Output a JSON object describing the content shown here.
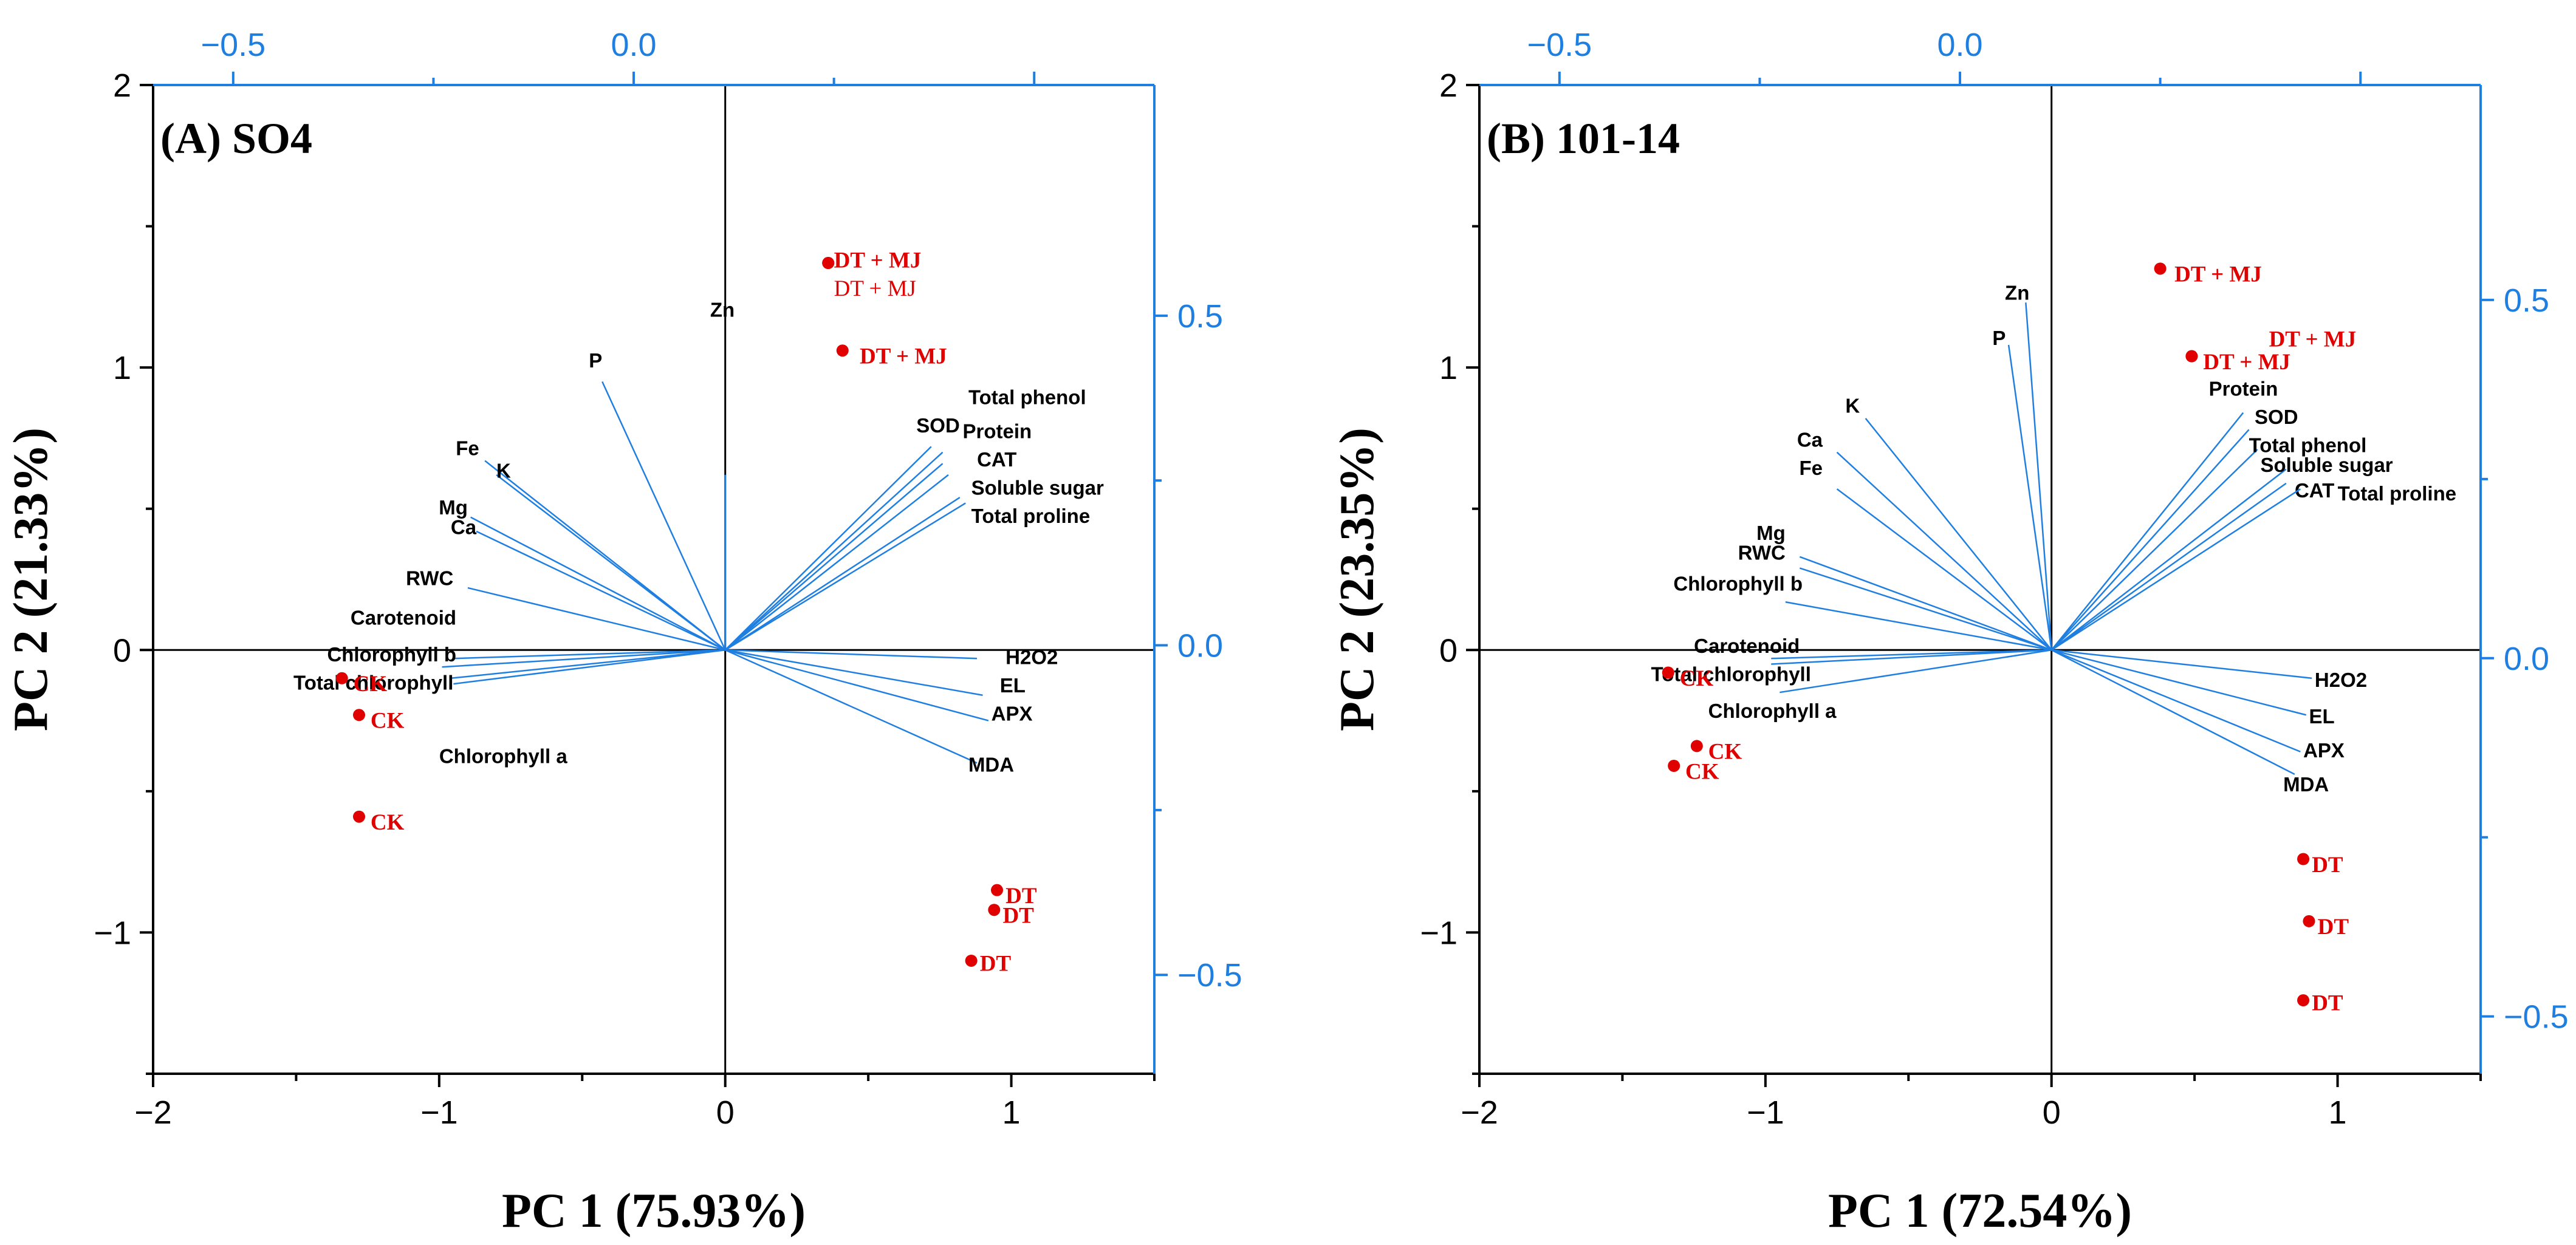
{
  "colors": {
    "vector": "#1f7fe0",
    "sample": "#e00000",
    "axis": "#000000",
    "loading_axis": "#1f7fe0"
  },
  "chart_data": [
    {
      "type": "scatter",
      "subtype": "pca-biplot",
      "title": "(A) SO4",
      "xlabel": "PC 1 (75.93%)",
      "ylabel": "PC 2 (21.33%)",
      "xlim": [
        -2,
        1.5
      ],
      "ylim": [
        -1.5,
        2
      ],
      "xticks": [
        -2,
        -1,
        0,
        1
      ],
      "xtick_labels": [
        "−2",
        "−1",
        "0",
        "1"
      ],
      "yticks": [
        2,
        1,
        0,
        -1
      ],
      "ytick_labels": [
        "2",
        "1",
        "0",
        "−1"
      ],
      "top_axis": {
        "lim": [
          -0.6,
          0.65
        ],
        "ticks": [
          -0.5,
          0.0
        ],
        "labels": [
          "−0.5",
          "0.0"
        ]
      },
      "right_axis": {
        "lim": [
          -0.65,
          0.85
        ],
        "ticks": [
          0.5,
          0.0,
          -0.5
        ],
        "labels": [
          "0.5",
          "0.0",
          "−0.5"
        ]
      },
      "loadings": [
        {
          "name": "Zn",
          "x": 0.0,
          "y": 0.62,
          "lx": -0.01,
          "ly": 1.18,
          "anchor": "middle"
        },
        {
          "name": "P",
          "x": -0.43,
          "y": 0.95,
          "lx": -0.43,
          "ly": 1.0,
          "anchor": "end"
        },
        {
          "name": "Fe",
          "x": -0.84,
          "y": 0.67,
          "lx": -0.86,
          "ly": 0.69,
          "anchor": "end"
        },
        {
          "name": "K",
          "x": -0.8,
          "y": 0.62,
          "lx": -0.8,
          "ly": 0.61,
          "anchor": "start"
        },
        {
          "name": "Mg",
          "x": -0.89,
          "y": 0.47,
          "lx": -0.9,
          "ly": 0.48,
          "anchor": "end"
        },
        {
          "name": "Ca",
          "x": -0.87,
          "y": 0.42,
          "lx": -0.87,
          "ly": 0.41,
          "anchor": "end"
        },
        {
          "name": "RWC",
          "x": -0.9,
          "y": 0.22,
          "lx": -0.95,
          "ly": 0.23,
          "anchor": "end"
        },
        {
          "name": "Carotenoid",
          "x": -0.95,
          "y": -0.03,
          "lx": -0.94,
          "ly": 0.09,
          "anchor": "end"
        },
        {
          "name": "Chlorophyll b",
          "x": -0.99,
          "y": -0.06,
          "lx": -0.94,
          "ly": -0.04,
          "anchor": "end"
        },
        {
          "name": "Total chlorophyll",
          "x": -0.96,
          "y": -0.1,
          "lx": -0.95,
          "ly": -0.14,
          "anchor": "end"
        },
        {
          "name": "Chlorophyll a",
          "x": -0.95,
          "y": -0.12,
          "lx": -1.0,
          "ly": -0.4,
          "anchor": "start"
        },
        {
          "name": "Total phenol",
          "x": 0.76,
          "y": 0.7,
          "lx": 0.85,
          "ly": 0.87,
          "anchor": "start"
        },
        {
          "name": "SOD",
          "x": 0.72,
          "y": 0.72,
          "lx": 0.82,
          "ly": 0.77,
          "anchor": "end"
        },
        {
          "name": "Protein",
          "x": 0.76,
          "y": 0.66,
          "lx": 0.83,
          "ly": 0.75,
          "anchor": "start"
        },
        {
          "name": "CAT",
          "x": 0.78,
          "y": 0.62,
          "lx": 0.88,
          "ly": 0.65,
          "anchor": "start"
        },
        {
          "name": "Soluble sugar",
          "x": 0.82,
          "y": 0.54,
          "lx": 0.86,
          "ly": 0.55,
          "anchor": "start"
        },
        {
          "name": "Total proline",
          "x": 0.84,
          "y": 0.52,
          "lx": 0.86,
          "ly": 0.45,
          "anchor": "start"
        },
        {
          "name": "H2O2",
          "x": 0.88,
          "y": -0.03,
          "lx": 0.98,
          "ly": -0.05,
          "anchor": "start"
        },
        {
          "name": "EL",
          "x": 0.9,
          "y": -0.16,
          "lx": 0.96,
          "ly": -0.15,
          "anchor": "start"
        },
        {
          "name": "APX",
          "x": 0.92,
          "y": -0.25,
          "lx": 0.93,
          "ly": -0.25,
          "anchor": "start"
        },
        {
          "name": "MDA",
          "x": 0.88,
          "y": -0.4,
          "lx": 0.85,
          "ly": -0.43,
          "anchor": "start"
        }
      ],
      "samples": [
        {
          "name": "DT + MJ",
          "x": 0.36,
          "y": 1.37,
          "lx": 0.38,
          "ly": 1.38,
          "bold": true
        },
        {
          "name": "DT + MJ",
          "x": 0.36,
          "y": 1.37,
          "lx": 0.38,
          "ly": 1.28,
          "bold": false
        },
        {
          "name": "DT + MJ",
          "x": 0.41,
          "y": 1.06,
          "lx": 0.47,
          "ly": 1.04,
          "bold": true
        },
        {
          "name": "CK",
          "x": -1.34,
          "y": -0.1,
          "lx": -1.3,
          "ly": -0.12,
          "bold": true
        },
        {
          "name": "CK",
          "x": -1.28,
          "y": -0.23,
          "lx": -1.24,
          "ly": -0.25,
          "bold": true
        },
        {
          "name": "CK",
          "x": -1.28,
          "y": -0.59,
          "lx": -1.24,
          "ly": -0.61,
          "bold": true
        },
        {
          "name": "DT",
          "x": 0.95,
          "y": -0.85,
          "lx": 0.98,
          "ly": -0.87,
          "bold": true
        },
        {
          "name": "DT",
          "x": 0.94,
          "y": -0.92,
          "lx": 0.97,
          "ly": -0.94,
          "bold": true
        },
        {
          "name": "DT",
          "x": 0.86,
          "y": -1.1,
          "lx": 0.89,
          "ly": -1.11,
          "bold": true
        }
      ]
    },
    {
      "type": "scatter",
      "subtype": "pca-biplot",
      "title": "(B) 101-14",
      "xlabel": "PC 1 (72.54%)",
      "ylabel": "PC 2 (23.35%)",
      "xlim": [
        -2,
        1.5
      ],
      "ylim": [
        -1.5,
        2
      ],
      "xticks": [
        -2,
        -1,
        0,
        1
      ],
      "xtick_labels": [
        "−2",
        "−1",
        "0",
        "1"
      ],
      "yticks": [
        2,
        1,
        0,
        -1
      ],
      "ytick_labels": [
        "2",
        "1",
        "0",
        "−1"
      ],
      "top_axis": {
        "lim": [
          -0.6,
          0.65
        ],
        "ticks": [
          -0.5,
          0.0
        ],
        "labels": [
          "−0.5",
          "0.0"
        ]
      },
      "right_axis": {
        "lim": [
          -0.58,
          0.8
        ],
        "ticks": [
          0.5,
          0.0,
          -0.5
        ],
        "labels": [
          "0.5",
          "0.0",
          "−0.5"
        ]
      },
      "loadings": [
        {
          "name": "Zn",
          "x": -0.09,
          "y": 1.23,
          "lx": -0.12,
          "ly": 1.24,
          "anchor": "middle"
        },
        {
          "name": "P",
          "x": -0.15,
          "y": 1.08,
          "lx": -0.16,
          "ly": 1.08,
          "anchor": "end"
        },
        {
          "name": "K",
          "x": -0.65,
          "y": 0.82,
          "lx": -0.67,
          "ly": 0.84,
          "anchor": "end"
        },
        {
          "name": "Ca",
          "x": -0.75,
          "y": 0.7,
          "lx": -0.8,
          "ly": 0.72,
          "anchor": "end"
        },
        {
          "name": "Fe",
          "x": -0.75,
          "y": 0.57,
          "lx": -0.8,
          "ly": 0.62,
          "anchor": "end"
        },
        {
          "name": "Mg",
          "x": -0.88,
          "y": 0.33,
          "lx": -0.93,
          "ly": 0.39,
          "anchor": "end"
        },
        {
          "name": "RWC",
          "x": -0.88,
          "y": 0.29,
          "lx": -0.93,
          "ly": 0.32,
          "anchor": "end"
        },
        {
          "name": "Chlorophyll b",
          "x": -0.93,
          "y": 0.17,
          "lx": -0.87,
          "ly": 0.21,
          "anchor": "end"
        },
        {
          "name": "Carotenoid",
          "x": -0.98,
          "y": -0.03,
          "lx": -1.25,
          "ly": -0.01,
          "anchor": "start"
        },
        {
          "name": "Total chlorophyll",
          "x": -0.98,
          "y": -0.05,
          "lx": -1.4,
          "ly": -0.11,
          "anchor": "start"
        },
        {
          "name": "Chlorophyll a",
          "x": -0.95,
          "y": -0.15,
          "lx": -1.2,
          "ly": -0.24,
          "anchor": "start"
        },
        {
          "name": "Protein",
          "x": 0.67,
          "y": 0.84,
          "lx": 0.55,
          "ly": 0.9,
          "anchor": "start"
        },
        {
          "name": "SOD",
          "x": 0.69,
          "y": 0.78,
          "lx": 0.71,
          "ly": 0.8,
          "anchor": "start"
        },
        {
          "name": "Total phenol",
          "x": 0.72,
          "y": 0.71,
          "lx": 0.69,
          "ly": 0.7,
          "anchor": "start"
        },
        {
          "name": "Soluble sugar",
          "x": 0.82,
          "y": 0.64,
          "lx": 0.73,
          "ly": 0.63,
          "anchor": "start"
        },
        {
          "name": "CAT",
          "x": 0.82,
          "y": 0.59,
          "lx": 0.85,
          "ly": 0.54,
          "anchor": "start"
        },
        {
          "name": "Total proline",
          "x": 0.87,
          "y": 0.57,
          "lx": 1.0,
          "ly": 0.53,
          "anchor": "start"
        },
        {
          "name": "H2O2",
          "x": 0.91,
          "y": -0.1,
          "lx": 0.92,
          "ly": -0.13,
          "anchor": "start"
        },
        {
          "name": "EL",
          "x": 0.89,
          "y": -0.23,
          "lx": 0.9,
          "ly": -0.26,
          "anchor": "start"
        },
        {
          "name": "APX",
          "x": 0.87,
          "y": -0.36,
          "lx": 0.88,
          "ly": -0.38,
          "anchor": "start"
        },
        {
          "name": "MDA",
          "x": 0.85,
          "y": -0.44,
          "lx": 0.81,
          "ly": -0.5,
          "anchor": "start"
        }
      ],
      "samples": [
        {
          "name": "DT + MJ",
          "x": 0.38,
          "y": 1.35,
          "lx": 0.43,
          "ly": 1.33,
          "bold": true
        },
        {
          "name": "DT + MJ",
          "x": 0.49,
          "y": 1.04,
          "lx": 0.53,
          "ly": 1.02,
          "bold": true
        },
        {
          "name": "DT + MJ",
          "x": 0.49,
          "y": 1.04,
          "lx": 0.76,
          "ly": 1.1,
          "bold": true
        },
        {
          "name": "CK",
          "x": -1.34,
          "y": -0.08,
          "lx": -1.3,
          "ly": -0.1,
          "bold": true
        },
        {
          "name": "CK",
          "x": -1.24,
          "y": -0.34,
          "lx": -1.2,
          "ly": -0.36,
          "bold": true
        },
        {
          "name": "CK",
          "x": -1.32,
          "y": -0.41,
          "lx": -1.28,
          "ly": -0.43,
          "bold": true
        },
        {
          "name": "DT",
          "x": 0.88,
          "y": -0.74,
          "lx": 0.91,
          "ly": -0.76,
          "bold": true
        },
        {
          "name": "DT",
          "x": 0.9,
          "y": -0.96,
          "lx": 0.93,
          "ly": -0.98,
          "bold": true
        },
        {
          "name": "DT",
          "x": 0.88,
          "y": -1.24,
          "lx": 0.91,
          "ly": -1.25,
          "bold": true
        }
      ]
    }
  ]
}
